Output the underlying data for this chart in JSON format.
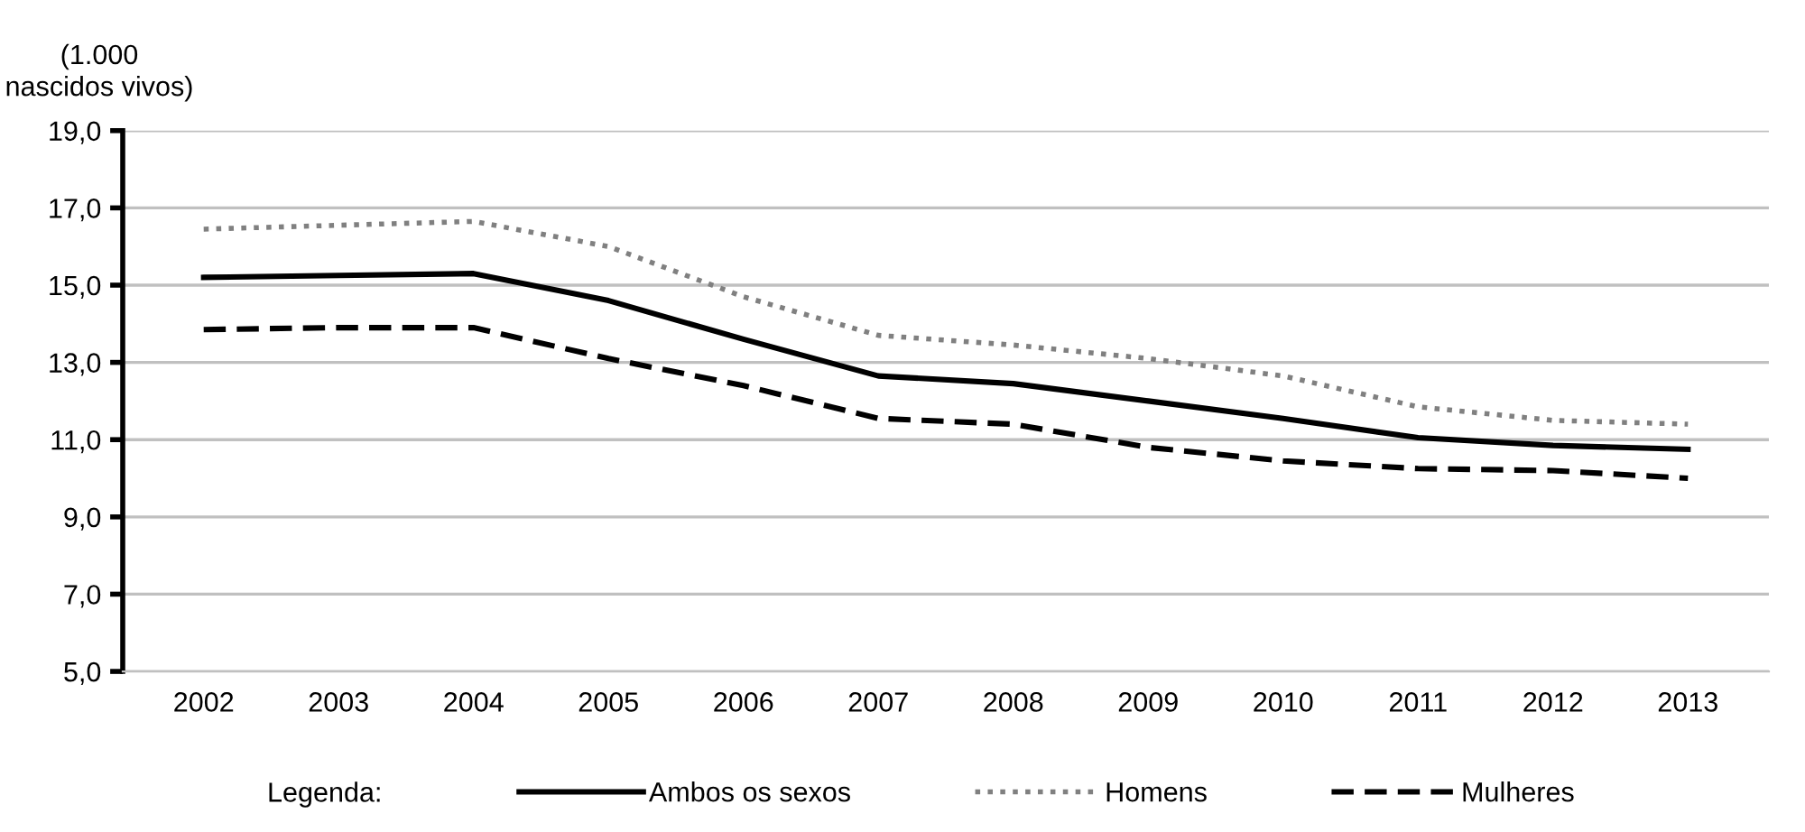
{
  "chart_data": {
    "type": "line",
    "ylabel": "(1.000\nnascidos vivos)",
    "categories": [
      "2002",
      "2003",
      "2004",
      "2005",
      "2006",
      "2007",
      "2008",
      "2009",
      "2010",
      "2011",
      "2012",
      "2013"
    ],
    "series": [
      {
        "name": "Ambos os sexos",
        "color": "#000000",
        "line_style": "solid",
        "values": [
          15.2,
          15.25,
          15.3,
          14.6,
          13.6,
          12.65,
          12.45,
          12.0,
          11.55,
          11.05,
          10.85,
          10.75
        ]
      },
      {
        "name": "Homens",
        "color": "#808080",
        "line_style": "dotted",
        "values": [
          16.45,
          16.55,
          16.65,
          16.0,
          14.7,
          13.7,
          13.45,
          13.1,
          12.65,
          11.85,
          11.5,
          11.4
        ]
      },
      {
        "name": "Mulheres",
        "color": "#000000",
        "line_style": "dashed",
        "values": [
          13.85,
          13.9,
          13.9,
          13.1,
          12.4,
          11.55,
          11.4,
          10.8,
          10.45,
          10.25,
          10.2,
          10.0
        ]
      }
    ],
    "ylim": [
      5,
      19
    ],
    "yticks": [
      {
        "value": 5,
        "label": "5,0"
      },
      {
        "value": 7,
        "label": "7,0"
      },
      {
        "value": 9,
        "label": "9,0"
      },
      {
        "value": 11,
        "label": "11,0"
      },
      {
        "value": 13,
        "label": "13,0"
      },
      {
        "value": 15,
        "label": "15,0"
      },
      {
        "value": 17,
        "label": "17,0"
      },
      {
        "value": 19,
        "label": "19,0"
      }
    ],
    "grid": "y",
    "legend": "bottom",
    "legend_title": "Legenda:",
    "marker": "none"
  }
}
